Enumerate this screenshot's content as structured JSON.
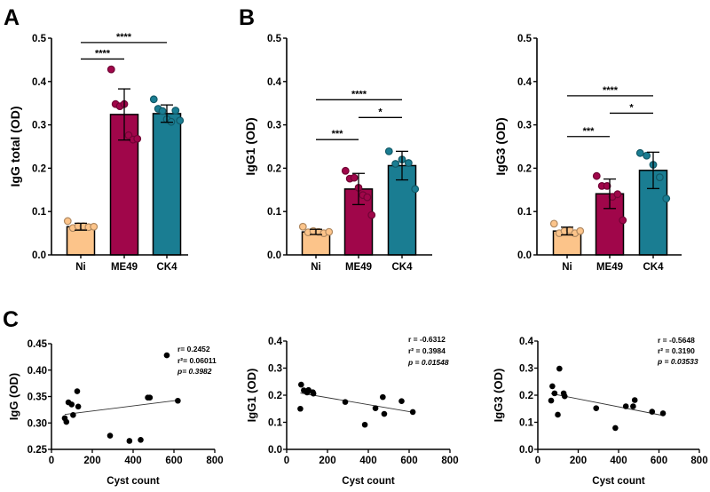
{
  "panel_labels": [
    "A",
    "B",
    "C"
  ],
  "colors": {
    "Ni": "#FCC48A",
    "ME49": "#A0064A",
    "CK4": "#1A7D92",
    "axis": "#000000"
  },
  "chart_data": [
    {
      "type": "bar",
      "panel": "A",
      "ylabel": "IgG total (OD)",
      "xlabel": "",
      "ylim": [
        0,
        0.5
      ],
      "yticks": [
        "0.0",
        "0.1",
        "0.2",
        "0.3",
        "0.4",
        "0.5"
      ],
      "categories": [
        "Ni",
        "ME49",
        "CK4"
      ],
      "means": [
        0.065,
        0.324,
        0.326
      ],
      "sd": [
        0.008,
        0.059,
        0.02
      ],
      "points": [
        [
          0.078,
          0.062,
          0.066,
          0.066,
          0.064,
          0.065
        ],
        [
          0.428,
          0.348,
          0.343,
          0.348,
          0.276,
          0.266,
          0.268
        ],
        [
          0.359,
          0.337,
          0.332,
          0.313,
          0.307,
          0.333,
          0.31
        ]
      ],
      "significance": [
        {
          "from": "Ni",
          "to": "ME49",
          "y": 0.452,
          "label": "****"
        },
        {
          "from": "Ni",
          "to": "CK4",
          "y": 0.49,
          "label": "****"
        }
      ]
    },
    {
      "type": "bar",
      "panel": "B",
      "ylabel": "IgG1 (OD)",
      "xlabel": "",
      "ylim": [
        0,
        0.5
      ],
      "yticks": [
        "0.0",
        "0.1",
        "0.2",
        "0.3",
        "0.4",
        "0.5"
      ],
      "categories": [
        "Ni",
        "ME49",
        "CK4"
      ],
      "means": [
        0.053,
        0.152,
        0.206
      ],
      "sd": [
        0.006,
        0.036,
        0.033
      ],
      "points": [
        [
          0.065,
          0.052,
          0.055,
          0.053,
          0.05,
          0.053
        ],
        [
          0.194,
          0.176,
          0.178,
          0.155,
          0.138,
          0.133,
          0.092
        ],
        [
          0.239,
          0.21,
          0.22,
          0.212,
          0.152
        ]
      ],
      "significance": [
        {
          "from": "Ni",
          "to": "ME49",
          "y": 0.266,
          "label": "***"
        },
        {
          "from": "ME49",
          "to": "CK4",
          "y": 0.317,
          "label": "*"
        },
        {
          "from": "Ni",
          "to": "CK4",
          "y": 0.358,
          "label": "****"
        }
      ]
    },
    {
      "type": "bar",
      "panel": "B",
      "ylabel": "IgG3 (OD)",
      "xlabel": "",
      "ylim": [
        0,
        0.5
      ],
      "yticks": [
        "0.0",
        "0.1",
        "0.2",
        "0.3",
        "0.4",
        "0.5"
      ],
      "categories": [
        "Ni",
        "ME49",
        "CK4"
      ],
      "means": [
        0.055,
        0.141,
        0.195
      ],
      "sd": [
        0.009,
        0.034,
        0.042
      ],
      "points": [
        [
          0.072,
          0.05,
          0.055,
          0.057,
          0.05,
          0.055
        ],
        [
          0.182,
          0.159,
          0.159,
          0.134,
          0.14,
          0.08
        ],
        [
          0.235,
          0.229,
          0.208,
          0.179,
          0.13
        ]
      ],
      "significance": [
        {
          "from": "Ni",
          "to": "ME49",
          "y": 0.273,
          "label": "***"
        },
        {
          "from": "ME49",
          "to": "CK4",
          "y": 0.327,
          "label": "*"
        },
        {
          "from": "Ni",
          "to": "CK4",
          "y": 0.367,
          "label": "****"
        }
      ]
    },
    {
      "type": "scatter",
      "panel": "C",
      "xlabel": "Cyst count",
      "ylabel": "IgG (OD)",
      "xlim": [
        0,
        800
      ],
      "ylim": [
        0.25,
        0.45
      ],
      "xticks": [
        "0",
        "200",
        "400",
        "600",
        "800"
      ],
      "yticks": [
        "0.25",
        "0.30",
        "0.35",
        "0.40",
        "0.45"
      ],
      "x": [
        65,
        73,
        83,
        99,
        106,
        126,
        131,
        287,
        382,
        437,
        472,
        482,
        565,
        619
      ],
      "y": [
        0.309,
        0.302,
        0.339,
        0.335,
        0.315,
        0.36,
        0.331,
        0.276,
        0.266,
        0.268,
        0.348,
        0.348,
        0.428,
        0.342
      ],
      "fit": {
        "x": [
          65,
          619
        ],
        "y": [
          0.316,
          0.343
        ]
      },
      "stats": {
        "r": "r= 0.2452",
        "r2": "r²= 0.06011",
        "p": "p= 0.3982"
      }
    },
    {
      "type": "scatter",
      "panel": "C",
      "xlabel": "Cyst count",
      "ylabel": "IgG1 (OD)",
      "xlim": [
        0,
        800
      ],
      "ylim": [
        0,
        0.4
      ],
      "xticks": [
        "0",
        "200",
        "400",
        "600",
        "800"
      ],
      "yticks": [
        "0.0",
        "0.1",
        "0.2",
        "0.3",
        "0.4"
      ],
      "x": [
        67,
        71,
        84,
        100,
        107,
        128,
        131,
        287,
        383,
        435,
        471,
        478,
        563,
        618
      ],
      "y": [
        0.15,
        0.239,
        0.218,
        0.21,
        0.219,
        0.211,
        0.206,
        0.175,
        0.091,
        0.152,
        0.193,
        0.131,
        0.178,
        0.138
      ],
      "fit": {
        "x": [
          67,
          618
        ],
        "y": [
          0.208,
          0.137
        ]
      },
      "stats": {
        "r": "r = -0.6312",
        "r2": "r² = 0.3984",
        "p": "p = 0.01548"
      }
    },
    {
      "type": "scatter",
      "panel": "C",
      "xlabel": "Cyst count",
      "ylabel": "IgG3 (OD)",
      "xlim": [
        0,
        800
      ],
      "ylim": [
        0,
        0.4
      ],
      "xticks": [
        "0",
        "200",
        "400",
        "600",
        "800"
      ],
      "yticks": [
        "0.0",
        "0.1",
        "0.2",
        "0.3",
        "0.4"
      ],
      "x": [
        66,
        72,
        83,
        99,
        107,
        128,
        133,
        289,
        384,
        436,
        472,
        480,
        566,
        620
      ],
      "y": [
        0.18,
        0.233,
        0.207,
        0.128,
        0.298,
        0.207,
        0.196,
        0.152,
        0.079,
        0.159,
        0.159,
        0.182,
        0.139,
        0.133
      ],
      "fit": {
        "x": [
          66,
          620
        ],
        "y": [
          0.206,
          0.125
        ]
      },
      "stats": {
        "r": "r = -0.5648",
        "r2": "r² = 0.3190",
        "p": "p = 0.03533"
      }
    }
  ]
}
